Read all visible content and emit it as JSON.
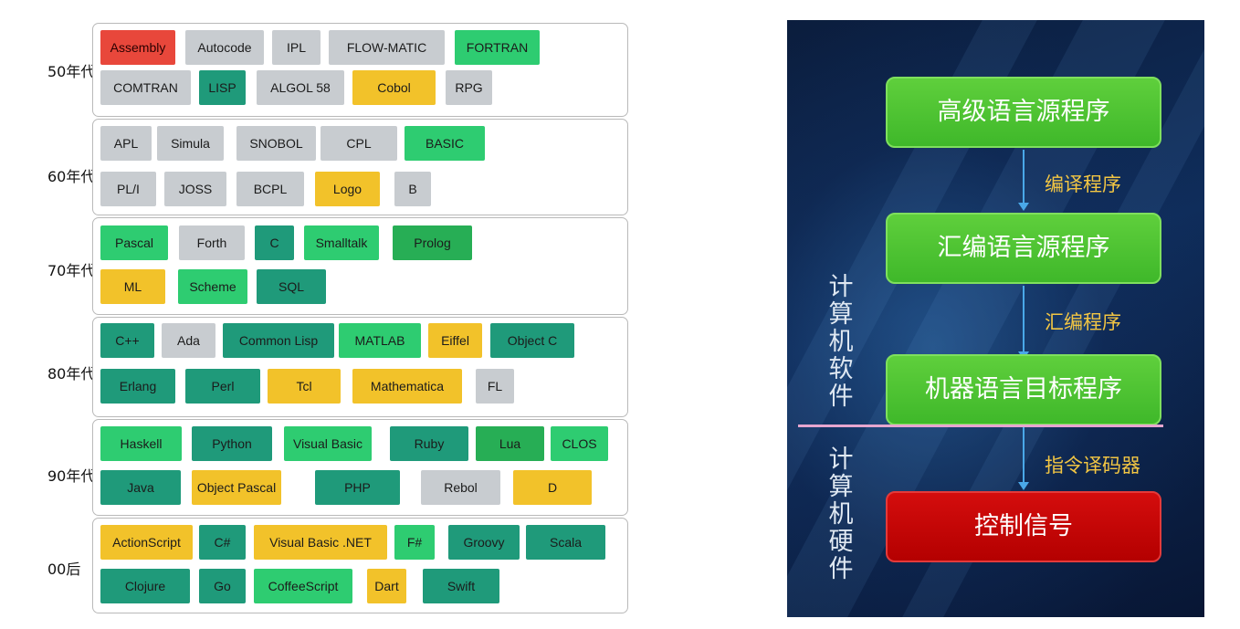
{
  "timeline": {
    "eras": [
      {
        "label": "50年代",
        "rows": [
          [
            {
              "text": "Assembly",
              "color": "red"
            },
            {
              "text": "Autocode",
              "color": "gray"
            },
            {
              "text": "IPL",
              "color": "gray"
            },
            {
              "text": "FLOW-MATIC",
              "color": "gray"
            },
            {
              "text": "FORTRAN",
              "color": "green"
            }
          ],
          [
            {
              "text": "COMTRAN",
              "color": "gray"
            },
            {
              "text": "LISP",
              "color": "teal"
            },
            {
              "text": "ALGOL 58",
              "color": "gray"
            },
            {
              "text": "Cobol",
              "color": "gold"
            },
            {
              "text": "RPG",
              "color": "gray"
            }
          ]
        ]
      },
      {
        "label": "60年代",
        "rows": [
          [
            {
              "text": "APL",
              "color": "gray"
            },
            {
              "text": "Simula",
              "color": "gray"
            },
            {
              "text": "SNOBOL",
              "color": "gray"
            },
            {
              "text": "CPL",
              "color": "gray"
            },
            {
              "text": "BASIC",
              "color": "green"
            }
          ],
          [
            {
              "text": "PL/I",
              "color": "gray"
            },
            {
              "text": "JOSS",
              "color": "gray"
            },
            {
              "text": "BCPL",
              "color": "gray"
            },
            {
              "text": "Logo",
              "color": "gold"
            },
            {
              "text": "B",
              "color": "gray"
            }
          ]
        ]
      },
      {
        "label": "70年代",
        "rows": [
          [
            {
              "text": "Pascal",
              "color": "green"
            },
            {
              "text": "Forth",
              "color": "gray"
            },
            {
              "text": "C",
              "color": "teal"
            },
            {
              "text": "Smalltalk",
              "color": "green"
            },
            {
              "text": "Prolog",
              "color": "darkgreen"
            }
          ],
          [
            {
              "text": "ML",
              "color": "gold"
            },
            {
              "text": "Scheme",
              "color": "green"
            },
            {
              "text": "SQL",
              "color": "teal"
            }
          ]
        ]
      },
      {
        "label": "80年代",
        "rows": [
          [
            {
              "text": "C++",
              "color": "teal"
            },
            {
              "text": "Ada",
              "color": "gray"
            },
            {
              "text": "Common Lisp",
              "color": "teal"
            },
            {
              "text": "MATLAB",
              "color": "green"
            },
            {
              "text": "Eiffel",
              "color": "gold"
            },
            {
              "text": "Object C",
              "color": "teal"
            }
          ],
          [
            {
              "text": "Erlang",
              "color": "teal"
            },
            {
              "text": "Perl",
              "color": "teal"
            },
            {
              "text": "Tcl",
              "color": "gold"
            },
            {
              "text": "Mathematica",
              "color": "gold"
            },
            {
              "text": "FL",
              "color": "gray"
            }
          ]
        ]
      },
      {
        "label": "90年代",
        "rows": [
          [
            {
              "text": "Haskell",
              "color": "green"
            },
            {
              "text": "Python",
              "color": "teal"
            },
            {
              "text": "Visual Basic",
              "color": "green"
            },
            {
              "text": "Ruby",
              "color": "teal"
            },
            {
              "text": "Lua",
              "color": "darkgreen"
            },
            {
              "text": "CLOS",
              "color": "green"
            }
          ],
          [
            {
              "text": "Java",
              "color": "teal"
            },
            {
              "text": "Object Pascal",
              "color": "gold"
            },
            {
              "text": "PHP",
              "color": "teal"
            },
            {
              "text": "Rebol",
              "color": "gray"
            },
            {
              "text": "D",
              "color": "gold"
            }
          ]
        ]
      },
      {
        "label": "00后",
        "rows": [
          [
            {
              "text": "ActionScript",
              "color": "gold"
            },
            {
              "text": "C#",
              "color": "teal"
            },
            {
              "text": "Visual Basic .NET",
              "color": "gold"
            },
            {
              "text": "F#",
              "color": "green"
            },
            {
              "text": "Groovy",
              "color": "teal"
            },
            {
              "text": "Scala",
              "color": "teal"
            }
          ],
          [
            {
              "text": "Clojure",
              "color": "teal"
            },
            {
              "text": "Go",
              "color": "teal"
            },
            {
              "text": "CoffeeScript",
              "color": "green"
            },
            {
              "text": "Dart",
              "color": "gold"
            },
            {
              "text": "Swift",
              "color": "teal"
            }
          ]
        ]
      }
    ],
    "colors": {
      "red": "#e8473b",
      "gray": "#c8ccd0",
      "green": "#2ecc71",
      "teal": "#1f9a7a",
      "gold": "#f2c22a",
      "darkgreen": "#27ae55"
    }
  },
  "flow": {
    "boxes": [
      "高级语言源程序",
      "汇编语言源程序",
      "机器语言目标程序",
      "控制信号"
    ],
    "steps": [
      "编译程序",
      "汇编程序",
      "指令译码器"
    ],
    "software_label": "计算机软件",
    "hardware_label": "计算机硬件",
    "colors": {
      "box_green": "#4cc232",
      "box_red": "#c40404",
      "arrow": "#4aa8e8",
      "step_text": "#f3c643",
      "divider": "#e7a6cf"
    }
  }
}
